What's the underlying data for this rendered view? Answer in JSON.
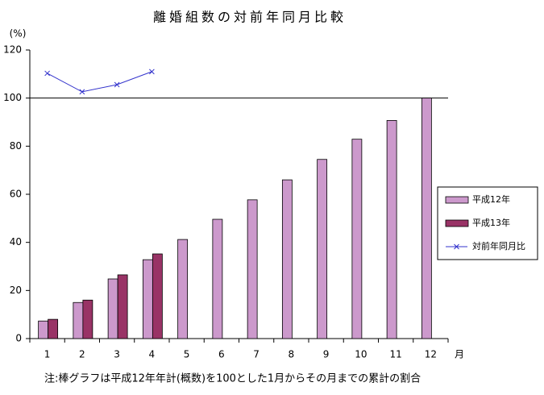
{
  "chart_data": {
    "type": "bar",
    "title": "離婚組数の対前年同月比較",
    "y_label": "(%)",
    "x_label": "月",
    "note": "注:棒グラフは平成12年年計(概数)を100とした1月からその月までの累計の割合",
    "categories": [
      "1",
      "2",
      "3",
      "4",
      "5",
      "6",
      "7",
      "8",
      "9",
      "10",
      "11",
      "12"
    ],
    "series": [
      {
        "name": "平成12年",
        "color": "#cc99cc",
        "values": [
          7.3,
          15,
          24.8,
          32.8,
          41.2,
          49.6,
          57.7,
          66,
          74.5,
          82.9,
          90.7,
          100
        ]
      },
      {
        "name": "平成13年",
        "color": "#993366",
        "values": [
          8,
          16,
          26.5,
          35.2,
          null,
          null,
          null,
          null,
          null,
          null,
          null,
          null
        ]
      },
      {
        "name": "対前年同月比",
        "type": "line",
        "color": "#3333cc",
        "values": [
          110.3,
          102.6,
          105.6,
          111,
          null,
          null,
          null,
          null,
          null,
          null,
          null,
          null
        ]
      }
    ],
    "reference_line": 100,
    "ylim": [
      0,
      120
    ],
    "yticks": [
      0,
      20,
      40,
      60,
      80,
      100,
      120
    ]
  }
}
